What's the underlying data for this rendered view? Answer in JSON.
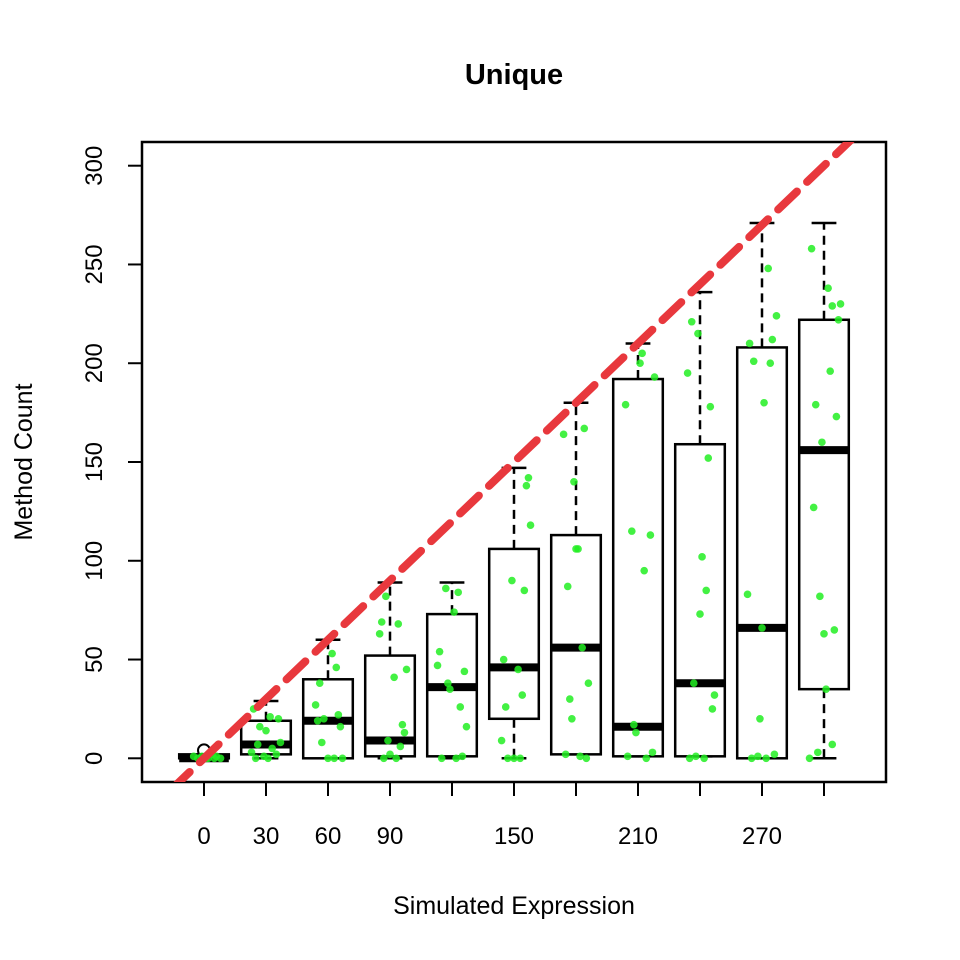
{
  "chart_data": {
    "type": "boxplot",
    "title": "Unique",
    "xlabel": "Simulated Expression",
    "ylabel": "Method Count",
    "ylim": [
      -12,
      312
    ],
    "xlim": [
      -30,
      330
    ],
    "y_ticks": [
      0,
      50,
      100,
      150,
      200,
      250,
      300
    ],
    "x_ticks": [
      0,
      30,
      60,
      90,
      120,
      150,
      180,
      210,
      240,
      270,
      300
    ],
    "x_tick_labels": [
      "0",
      "30",
      "60",
      "90",
      "",
      "150",
      "",
      "210",
      "",
      "270",
      ""
    ],
    "reference_line": {
      "slope": 1,
      "intercept": 0,
      "color": "#e8383d",
      "style": "dashed"
    },
    "point_color": "#22ee22",
    "box_color": "#000000",
    "boxes": [
      {
        "x": 0,
        "min": 0,
        "q1": 0,
        "median": 0,
        "q3": 2,
        "max": 2,
        "outliers": [
          4
        ]
      },
      {
        "x": 30,
        "min": 0,
        "q1": 2,
        "median": 7,
        "q3": 19,
        "max": 29,
        "outliers": []
      },
      {
        "x": 60,
        "min": 0,
        "q1": 0,
        "median": 19,
        "q3": 40,
        "max": 60,
        "outliers": []
      },
      {
        "x": 90,
        "min": 0,
        "q1": 1,
        "median": 9,
        "q3": 52,
        "max": 89,
        "outliers": []
      },
      {
        "x": 120,
        "min": 0,
        "q1": 1,
        "median": 36,
        "q3": 73,
        "max": 89,
        "outliers": []
      },
      {
        "x": 150,
        "min": 0,
        "q1": 20,
        "median": 46,
        "q3": 106,
        "max": 147,
        "outliers": []
      },
      {
        "x": 180,
        "min": 2,
        "q1": 2,
        "median": 56,
        "q3": 113,
        "max": 180,
        "outliers": []
      },
      {
        "x": 210,
        "min": 1,
        "q1": 1,
        "median": 16,
        "q3": 192,
        "max": 210,
        "outliers": []
      },
      {
        "x": 240,
        "min": 1,
        "q1": 1,
        "median": 38,
        "q3": 159,
        "max": 236,
        "outliers": []
      },
      {
        "x": 270,
        "min": 0,
        "q1": 0,
        "median": 66,
        "q3": 208,
        "max": 271,
        "outliers": []
      },
      {
        "x": 300,
        "min": 0,
        "q1": 35,
        "median": 156,
        "q3": 222,
        "max": 271,
        "outliers": []
      }
    ],
    "points": [
      {
        "x": -3,
        "y": 0
      },
      {
        "x": -1,
        "y": 1
      },
      {
        "x": 2,
        "y": 0
      },
      {
        "x": 4,
        "y": 2
      },
      {
        "x": 6,
        "y": 1
      },
      {
        "x": 1,
        "y": 0
      },
      {
        "x": 8,
        "y": 0
      },
      {
        "x": -5,
        "y": 1
      },
      {
        "x": 3,
        "y": 3
      },
      {
        "x": 5,
        "y": 0
      },
      {
        "x": 24,
        "y": 25
      },
      {
        "x": 27,
        "y": 16
      },
      {
        "x": 32,
        "y": 21
      },
      {
        "x": 36,
        "y": 20
      },
      {
        "x": 26,
        "y": 7
      },
      {
        "x": 33,
        "y": 5
      },
      {
        "x": 37,
        "y": 8
      },
      {
        "x": 25,
        "y": 0
      },
      {
        "x": 29,
        "y": 1
      },
      {
        "x": 31,
        "y": 0
      },
      {
        "x": 35,
        "y": 2
      },
      {
        "x": 30,
        "y": 14
      },
      {
        "x": 23,
        "y": 3
      },
      {
        "x": 54,
        "y": 27
      },
      {
        "x": 56,
        "y": 38
      },
      {
        "x": 62,
        "y": 53
      },
      {
        "x": 64,
        "y": 46
      },
      {
        "x": 58,
        "y": 20
      },
      {
        "x": 66,
        "y": 16
      },
      {
        "x": 60,
        "y": 0
      },
      {
        "x": 63,
        "y": 0
      },
      {
        "x": 67,
        "y": 0
      },
      {
        "x": 57,
        "y": 8
      },
      {
        "x": 55,
        "y": 19
      },
      {
        "x": 65,
        "y": 22
      },
      {
        "x": 86,
        "y": 69
      },
      {
        "x": 88,
        "y": 82
      },
      {
        "x": 94,
        "y": 68
      },
      {
        "x": 96,
        "y": 17
      },
      {
        "x": 85,
        "y": 63
      },
      {
        "x": 92,
        "y": 41
      },
      {
        "x": 98,
        "y": 45
      },
      {
        "x": 87,
        "y": 0
      },
      {
        "x": 90,
        "y": 2
      },
      {
        "x": 93,
        "y": 0
      },
      {
        "x": 95,
        "y": 6
      },
      {
        "x": 89,
        "y": 9
      },
      {
        "x": 97,
        "y": 13
      },
      {
        "x": 114,
        "y": 54
      },
      {
        "x": 117,
        "y": 86
      },
      {
        "x": 121,
        "y": 74
      },
      {
        "x": 123,
        "y": 84
      },
      {
        "x": 119,
        "y": 35
      },
      {
        "x": 126,
        "y": 44
      },
      {
        "x": 115,
        "y": 0
      },
      {
        "x": 122,
        "y": 0
      },
      {
        "x": 125,
        "y": 1
      },
      {
        "x": 118,
        "y": 38
      },
      {
        "x": 127,
        "y": 16
      },
      {
        "x": 113,
        "y": 47
      },
      {
        "x": 124,
        "y": 26
      },
      {
        "x": 144,
        "y": 9
      },
      {
        "x": 146,
        "y": 26
      },
      {
        "x": 149,
        "y": 90
      },
      {
        "x": 152,
        "y": 45
      },
      {
        "x": 154,
        "y": 32
      },
      {
        "x": 156,
        "y": 138
      },
      {
        "x": 158,
        "y": 118
      },
      {
        "x": 147,
        "y": 0
      },
      {
        "x": 150,
        "y": 0
      },
      {
        "x": 153,
        "y": 0
      },
      {
        "x": 145,
        "y": 50
      },
      {
        "x": 155,
        "y": 85
      },
      {
        "x": 157,
        "y": 142
      },
      {
        "x": 174,
        "y": 164
      },
      {
        "x": 176,
        "y": 87
      },
      {
        "x": 179,
        "y": 140
      },
      {
        "x": 181,
        "y": 106
      },
      {
        "x": 184,
        "y": 167
      },
      {
        "x": 186,
        "y": 38
      },
      {
        "x": 177,
        "y": 30
      },
      {
        "x": 175,
        "y": 2
      },
      {
        "x": 182,
        "y": 1
      },
      {
        "x": 185,
        "y": 0
      },
      {
        "x": 178,
        "y": 20
      },
      {
        "x": 183,
        "y": 56
      },
      {
        "x": 180,
        "y": 106
      },
      {
        "x": 204,
        "y": 179
      },
      {
        "x": 207,
        "y": 115
      },
      {
        "x": 211,
        "y": 200
      },
      {
        "x": 213,
        "y": 95
      },
      {
        "x": 216,
        "y": 113
      },
      {
        "x": 218,
        "y": 193
      },
      {
        "x": 205,
        "y": 1
      },
      {
        "x": 209,
        "y": 13
      },
      {
        "x": 214,
        "y": 0
      },
      {
        "x": 217,
        "y": 3
      },
      {
        "x": 212,
        "y": 205
      },
      {
        "x": 208,
        "y": 17
      },
      {
        "x": 234,
        "y": 195
      },
      {
        "x": 236,
        "y": 221
      },
      {
        "x": 239,
        "y": 215
      },
      {
        "x": 241,
        "y": 102
      },
      {
        "x": 243,
        "y": 85
      },
      {
        "x": 245,
        "y": 178
      },
      {
        "x": 244,
        "y": 152
      },
      {
        "x": 240,
        "y": 73
      },
      {
        "x": 246,
        "y": 25
      },
      {
        "x": 235,
        "y": 0
      },
      {
        "x": 238,
        "y": 1
      },
      {
        "x": 242,
        "y": 0
      },
      {
        "x": 247,
        "y": 32
      },
      {
        "x": 237,
        "y": 38
      },
      {
        "x": 263,
        "y": 83
      },
      {
        "x": 266,
        "y": 201
      },
      {
        "x": 269,
        "y": 20
      },
      {
        "x": 271,
        "y": 180
      },
      {
        "x": 273,
        "y": 248
      },
      {
        "x": 275,
        "y": 212
      },
      {
        "x": 277,
        "y": 224
      },
      {
        "x": 265,
        "y": 0
      },
      {
        "x": 268,
        "y": 1
      },
      {
        "x": 272,
        "y": 0
      },
      {
        "x": 276,
        "y": 2
      },
      {
        "x": 264,
        "y": 210
      },
      {
        "x": 270,
        "y": 66
      },
      {
        "x": 274,
        "y": 200
      },
      {
        "x": 294,
        "y": 258
      },
      {
        "x": 296,
        "y": 179
      },
      {
        "x": 299,
        "y": 160
      },
      {
        "x": 302,
        "y": 238
      },
      {
        "x": 304,
        "y": 229
      },
      {
        "x": 306,
        "y": 173
      },
      {
        "x": 303,
        "y": 196
      },
      {
        "x": 295,
        "y": 127
      },
      {
        "x": 298,
        "y": 82
      },
      {
        "x": 305,
        "y": 65
      },
      {
        "x": 307,
        "y": 222
      },
      {
        "x": 293,
        "y": 0
      },
      {
        "x": 297,
        "y": 3
      },
      {
        "x": 301,
        "y": 35
      },
      {
        "x": 300,
        "y": 63
      },
      {
        "x": 304,
        "y": 7
      },
      {
        "x": 308,
        "y": 230
      }
    ]
  }
}
